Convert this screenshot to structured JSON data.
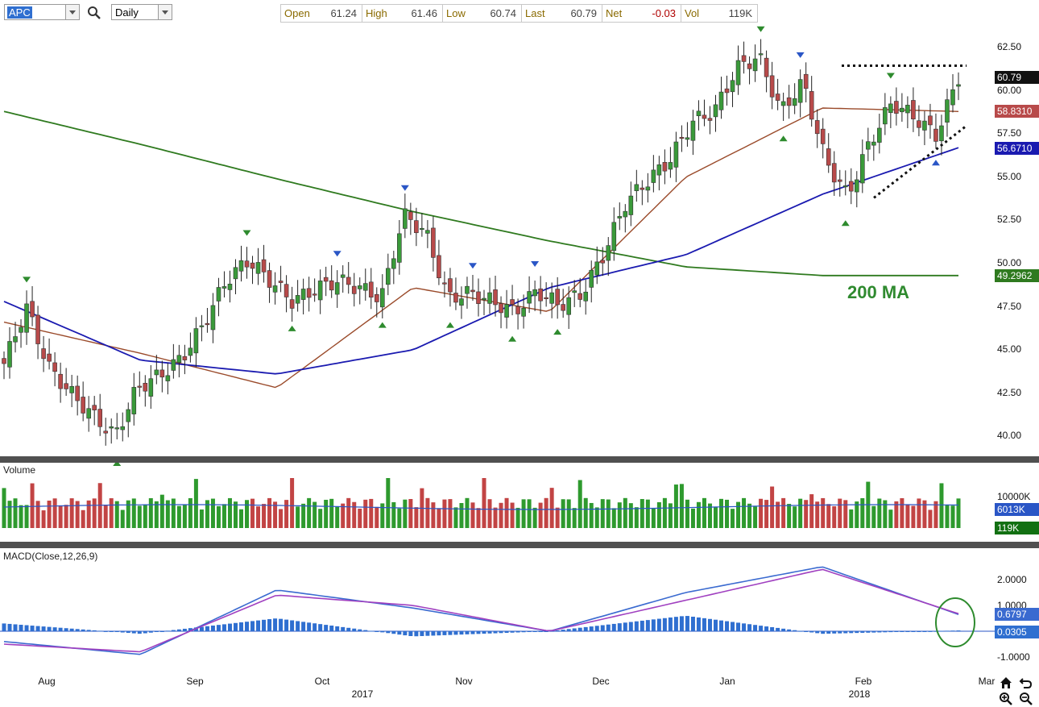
{
  "toolbar": {
    "symbol": "APC",
    "interval": "Daily",
    "quote": [
      {
        "label": "Open",
        "value": "61.24"
      },
      {
        "label": "High",
        "value": "61.46"
      },
      {
        "label": "Low",
        "value": "60.74"
      },
      {
        "label": "Last",
        "value": "60.79"
      },
      {
        "label": "Net",
        "value": "-0.03"
      },
      {
        "label": "Vol",
        "value": "119K"
      }
    ]
  },
  "colors": {
    "up_candle": "#3a9a3a",
    "down_candle": "#b84a4a",
    "ma20": "#9a4a2a",
    "ma50": "#1a1ab0",
    "ma200": "#2f7a1f",
    "macd_line": "#3a6ad0",
    "signal_line": "#a040c0",
    "histogram": "#2f6fd0",
    "price_tag": "#111111",
    "pattern_circle": "#2e8b2e",
    "separator": "#505050"
  },
  "price_pane": {
    "annotation": "200 MA",
    "y_ticks": [
      "62.50",
      "60.00",
      "57.50",
      "55.00",
      "52.50",
      "50.00",
      "47.50",
      "45.00",
      "42.50",
      "40.00"
    ],
    "tags": {
      "last": "60.79",
      "ma20": "58.8310",
      "ma50": "56.6710",
      "ma200": "49.2962"
    }
  },
  "volume_pane": {
    "title": "Volume",
    "y_tick": "10000K",
    "tags": {
      "avg": "6013K",
      "last": "119K"
    }
  },
  "macd_pane": {
    "title": "MACD(Close,12,26,9)",
    "y_ticks": [
      "2.0000",
      "1.0000",
      "-1.0000"
    ],
    "tags": {
      "macd": "0.6797",
      "hist": "0.0305"
    }
  },
  "x_axis": {
    "months": [
      "Aug",
      "Sep",
      "Oct",
      "Nov",
      "Dec",
      "Jan",
      "Feb",
      "Mar"
    ],
    "years": [
      "2017",
      "2018"
    ]
  },
  "chart_data": [
    {
      "type": "line",
      "title": "",
      "y_range": [
        39.0,
        63.5
      ],
      "x": [
        "Aug",
        "Sep",
        "Oct",
        "Nov",
        "Dec",
        "Jan",
        "Feb",
        "Mar"
      ],
      "series": [
        {
          "name": "200 MA",
          "values": [
            58.8,
            56.9,
            54.9,
            53.0,
            51.3,
            49.8,
            49.3,
            49.3
          ]
        },
        {
          "values": [
            46.6,
            44.8,
            42.8,
            48.6,
            47.2,
            55.0,
            59.0,
            58.8
          ]
        },
        {
          "values": [
            47.8,
            44.4,
            43.6,
            45.0,
            48.6,
            50.5,
            54.0,
            56.7
          ]
        }
      ],
      "patterns": {
        "resistance_level": 61.45,
        "rising_support_start": 53.8,
        "rising_support_end": 57.9
      }
    },
    {
      "type": "bar",
      "title": "Volume",
      "average": 6013,
      "last": 119
    },
    {
      "type": "line",
      "title": "MACD(Close,12,26,9)",
      "y_range": [
        -1.5,
        3.0
      ],
      "x": [
        "Aug",
        "Sep",
        "Oct",
        "Nov",
        "Dec",
        "Jan",
        "Feb",
        "Mar"
      ],
      "series": [
        {
          "values": [
            -0.4,
            -0.9,
            1.6,
            0.9,
            0.0,
            1.5,
            2.5,
            0.65
          ]
        },
        {
          "values": [
            -0.5,
            -0.8,
            1.4,
            1.0,
            0.0,
            1.2,
            2.4,
            0.68
          ]
        },
        {
          "values": [
            0.3,
            -0.1,
            0.5,
            -0.2,
            0.0,
            0.6,
            -0.1,
            0.03
          ]
        }
      ]
    }
  ]
}
